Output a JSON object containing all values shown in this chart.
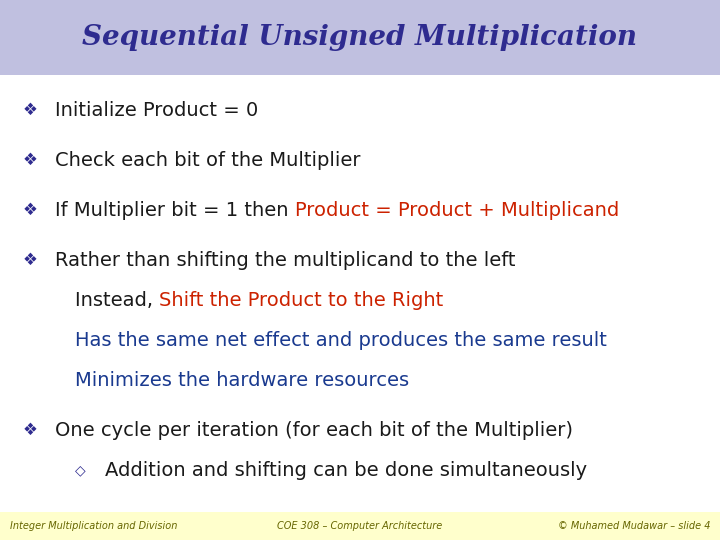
{
  "title": "Sequential Unsigned Multiplication",
  "title_color": "#2e2b8f",
  "title_bg_color": "#c0c0e0",
  "background_color": "#ffffff",
  "footer_bg_color": "#ffffcc",
  "footer_left": "Integer Multiplication and Division",
  "footer_center": "COE 308 – Computer Architecture",
  "footer_right": "© Muhamed Mudawar – slide 4",
  "bullet_color": "#2e2b8f",
  "text_color_dark": "#1a1a1a",
  "text_color_red": "#cc2200",
  "text_color_blue": "#1a3a8f",
  "title_fontsize": 20,
  "body_fontsize": 14,
  "footer_fontsize": 7,
  "bullets": [
    {
      "level": 0,
      "parts": [
        {
          "text": "Initialize Product = 0",
          "color": "dark"
        }
      ]
    },
    {
      "level": 0,
      "parts": [
        {
          "text": "Check each bit of the Multiplier",
          "color": "dark"
        }
      ]
    },
    {
      "level": 0,
      "parts": [
        {
          "text": "If Multiplier bit = 1 then ",
          "color": "dark"
        },
        {
          "text": "Product = Product + Multiplicand",
          "color": "red"
        }
      ]
    },
    {
      "level": 0,
      "parts": [
        {
          "text": "Rather than shifting the multiplicand to the left",
          "color": "dark"
        }
      ]
    },
    {
      "level": 1,
      "parts": [
        {
          "text": "Instead, ",
          "color": "dark"
        },
        {
          "text": "Shift the Product to the Right",
          "color": "red"
        }
      ]
    },
    {
      "level": 1,
      "parts": [
        {
          "text": "Has the same net effect and produces the same result",
          "color": "blue"
        }
      ]
    },
    {
      "level": 1,
      "parts": [
        {
          "text": "Minimizes the hardware resources",
          "color": "blue"
        }
      ]
    },
    {
      "level": 0,
      "parts": [
        {
          "text": "One cycle per iteration (for each bit of the Multiplier)",
          "color": "dark"
        }
      ]
    },
    {
      "level": 2,
      "parts": [
        {
          "text": "Addition and shifting can be done simultaneously",
          "color": "dark"
        }
      ]
    }
  ]
}
